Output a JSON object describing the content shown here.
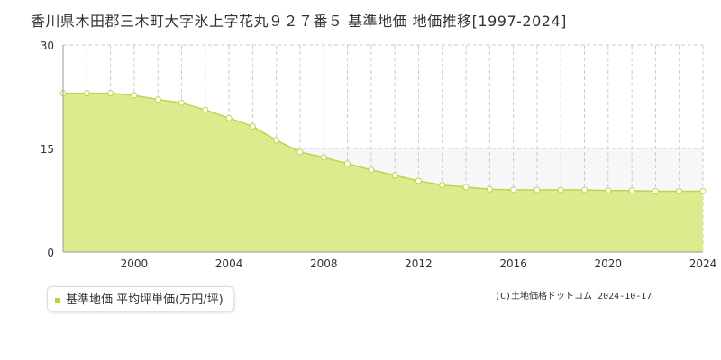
{
  "title": "香川県木田郡三木町大字氷上字花丸９２７番５ 基準地価 地価推移[1997-2024]",
  "legend_label": "基準地価 平均坪単価(万円/坪)",
  "credit": "(C)土地価格ドットコム 2024-10-17",
  "colors": {
    "fill": "#dbeb8e",
    "line": "#b5d94a",
    "marker_fill": "#ffffff",
    "marker_stroke": "#b5d94a",
    "legend_swatch": "#b0d640",
    "grid": "#cccccc",
    "band": "#f7f7f9"
  },
  "chart_data": {
    "type": "area",
    "title": "香川県木田郡三木町大字氷上字花丸９２７番５ 基準地価 地価推移[1997-2024]",
    "xlim": [
      1997,
      2024
    ],
    "ylim": [
      0,
      30
    ],
    "yticks": [
      "0",
      "15",
      "30"
    ],
    "xticks": [
      "2000",
      "2004",
      "2008",
      "2012",
      "2016",
      "2020",
      "2024"
    ],
    "grid": true,
    "legend_position": "bottom-left",
    "series": [
      {
        "name": "基準地価 平均坪単価(万円/坪)",
        "x": [
          1997,
          1998,
          1999,
          2000,
          2001,
          2002,
          2003,
          2004,
          2005,
          2006,
          2007,
          2008,
          2009,
          2010,
          2011,
          2012,
          2013,
          2014,
          2015,
          2016,
          2017,
          2018,
          2019,
          2020,
          2021,
          2022,
          2023,
          2024
        ],
        "y": [
          23.0,
          23.0,
          23.0,
          22.7,
          22.1,
          21.6,
          20.6,
          19.4,
          18.2,
          16.2,
          14.5,
          13.7,
          12.8,
          11.9,
          11.1,
          10.3,
          9.7,
          9.4,
          9.1,
          9.0,
          9.0,
          9.0,
          9.0,
          8.9,
          8.9,
          8.8,
          8.8,
          8.8
        ]
      }
    ]
  }
}
